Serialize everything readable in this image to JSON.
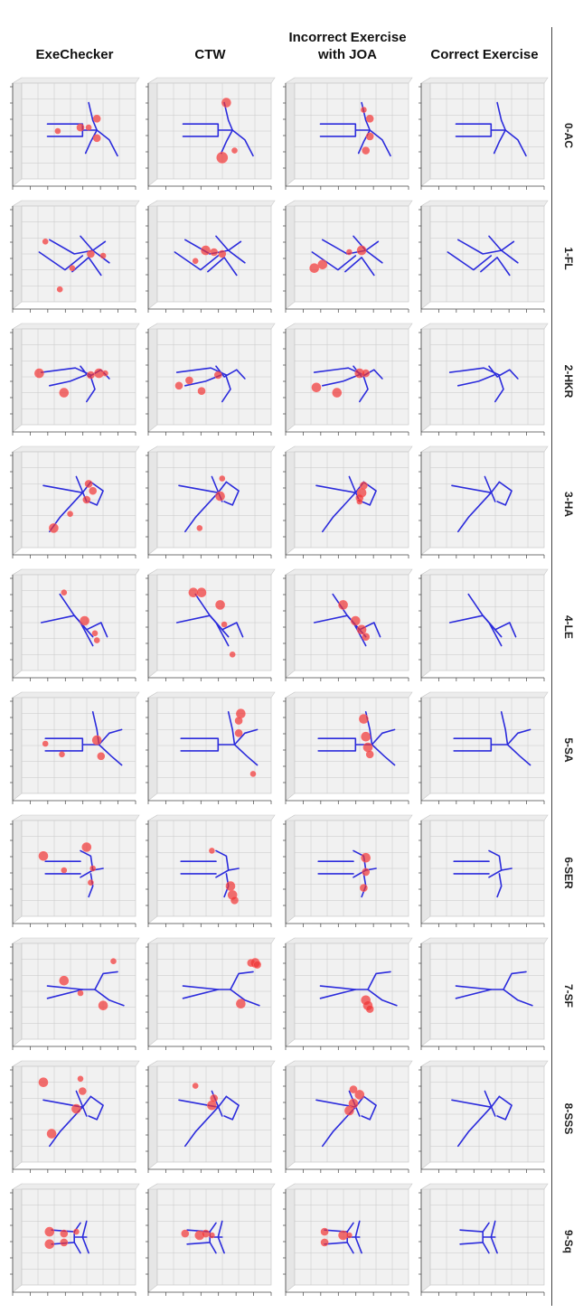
{
  "columns": [
    {
      "label": "ExeChecker"
    },
    {
      "label": "CTW"
    },
    {
      "label": "Incorrect Exercise with JOA"
    },
    {
      "label": "Correct Exercise"
    }
  ],
  "rows": [
    {
      "label": "0-AC"
    },
    {
      "label": "1-FL"
    },
    {
      "label": "2-HKR"
    },
    {
      "label": "3-HA"
    },
    {
      "label": "4-LE"
    },
    {
      "label": "5-SA"
    },
    {
      "label": "6-SER"
    },
    {
      "label": "7-SF"
    },
    {
      "label": "8-SSS"
    },
    {
      "label": "9-Sq"
    }
  ],
  "colors": {
    "skeleton": "#2b2bdc",
    "highlight": "#ee3333",
    "panel_face": "#f1f1f1",
    "grid": "#c8c8c8"
  }
}
